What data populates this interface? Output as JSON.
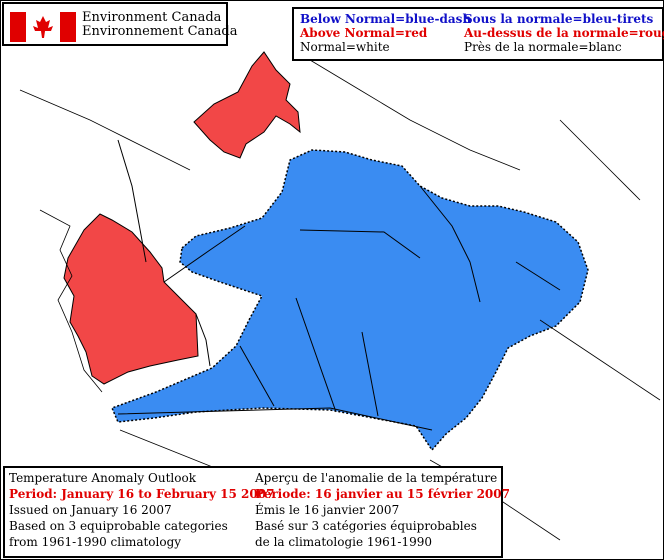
{
  "agency": {
    "name_en": "Environment Canada",
    "name_fr": "Environnement Canada"
  },
  "legend": {
    "en": [
      {
        "text": "Below Normal=blue-dash",
        "color": "#1010c8"
      },
      {
        "text": "Above Normal=red",
        "color": "#e00000"
      },
      {
        "text": "Normal=white",
        "color": "#000000"
      }
    ],
    "fr": [
      {
        "text": "Sous la normale=bleu-tirets",
        "color": "#1010c8"
      },
      {
        "text": "Au-dessus de la normale=rouge",
        "color": "#e00000"
      },
      {
        "text": "Près de la normale=blanc",
        "color": "#000000"
      }
    ]
  },
  "info": {
    "en": [
      {
        "text": "Temperature Anomaly Outlook",
        "color": "#000000"
      },
      {
        "text": "Period: January 16 to February 15 2007",
        "color": "#e00000"
      },
      {
        "text": "Issued on January 16 2007",
        "color": "#000000"
      },
      {
        "text": "Based on 3 equiprobable categories",
        "color": "#000000"
      },
      {
        "text": "from 1961-1990 climatology",
        "color": "#000000"
      }
    ],
    "fr": [
      {
        "text": "Aperçu de l'anomalie de la température",
        "color": "#000000"
      },
      {
        "text": "Periode: 16 janvier au 15 février 2007",
        "color": "#e00000"
      },
      {
        "text": "Émis le 16 janvier 2007",
        "color": "#000000"
      },
      {
        "text": "Basé sur 3 catégories équiprobables",
        "color": "#000000"
      },
      {
        "text": "de la climatologie 1961-1990",
        "color": "#000000"
      }
    ]
  },
  "colors": {
    "below_normal": "#3a8cf2",
    "above_normal": "#f24747",
    "normal": "#ffffff",
    "flag_red": "#e00000"
  }
}
